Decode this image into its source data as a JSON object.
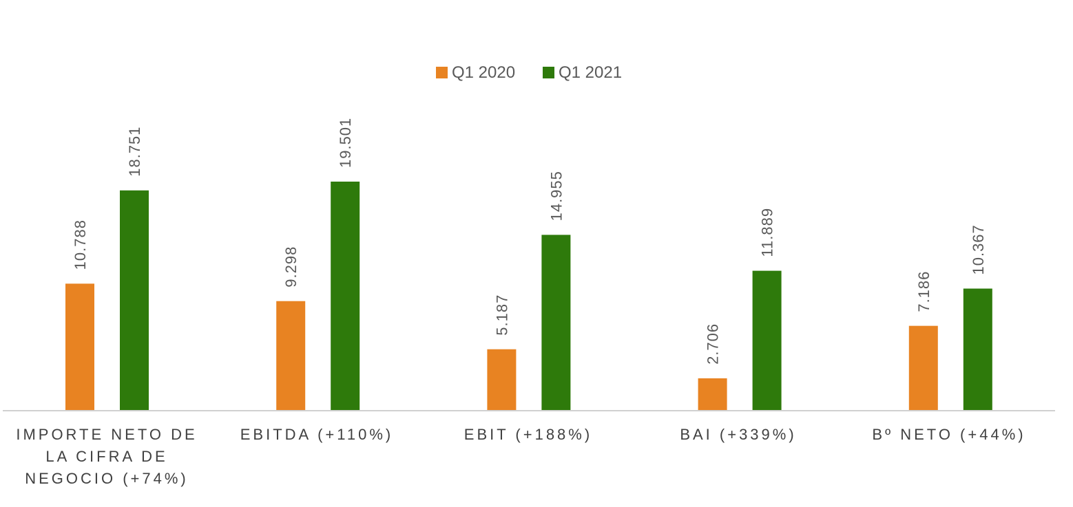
{
  "chart_data": {
    "type": "bar",
    "title": "",
    "xlabel": "",
    "ylabel": "",
    "ylim": [
      0,
      20000
    ],
    "grid": false,
    "legend_position": "top-center",
    "categories": [
      [
        "IMPORTE NETO DE",
        "LA CIFRA DE",
        "NEGOCIO (+74%)"
      ],
      [
        "EBITDA (+110%)"
      ],
      [
        "EBIT (+188%)"
      ],
      [
        "BAI (+339%)"
      ],
      [
        "Bº NETO (+44%)"
      ]
    ],
    "series": [
      {
        "name": "Q1 2020",
        "color": "#e88322",
        "values": [
          10788,
          9298,
          5187,
          2706,
          7186
        ],
        "labels": [
          "10.788",
          "9.298",
          "5.187",
          "2.706",
          "7.186"
        ]
      },
      {
        "name": "Q1 2021",
        "color": "#2e7a0b",
        "values": [
          18751,
          19501,
          14955,
          11889,
          10367
        ],
        "labels": [
          "18.751",
          "19.501",
          "14.955",
          "11.889",
          "10.367"
        ]
      }
    ]
  }
}
